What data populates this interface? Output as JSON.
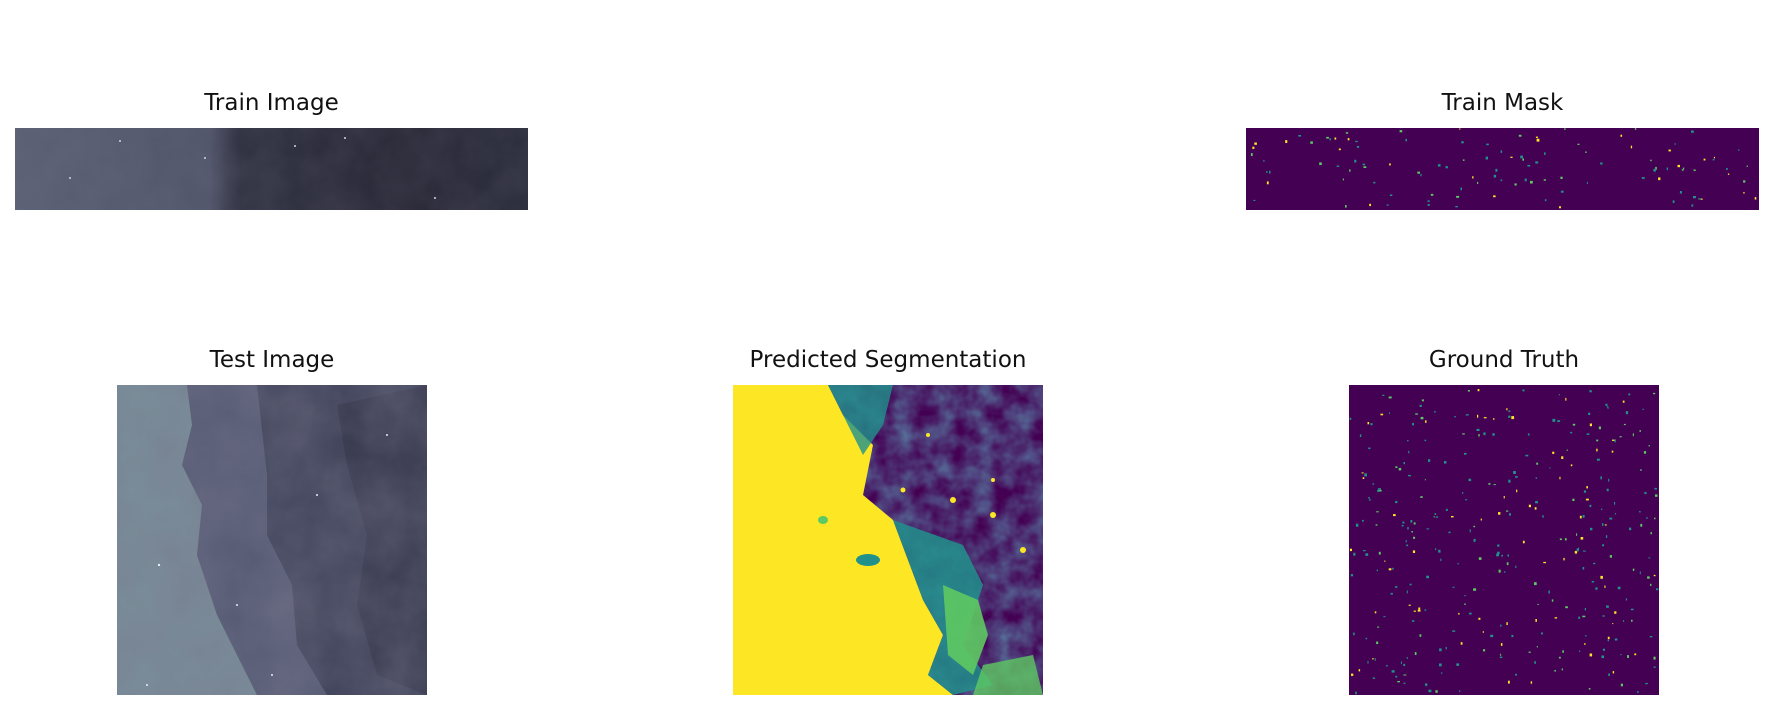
{
  "panels": {
    "train_image": {
      "title": "Train Image"
    },
    "train_mask": {
      "title": "Train Mask"
    },
    "test_image": {
      "title": "Test Image"
    },
    "predicted_segmentation": {
      "title": "Predicted Segmentation"
    },
    "ground_truth": {
      "title": "Ground Truth"
    }
  },
  "colors": {
    "viridis_dark": "#440154",
    "viridis_teal": "#21918c",
    "viridis_green": "#5ec962",
    "viridis_yellow": "#fde725",
    "bone_light": "#7f93a0",
    "bone_mid": "#4e5268",
    "bone_dark": "#22222e"
  }
}
